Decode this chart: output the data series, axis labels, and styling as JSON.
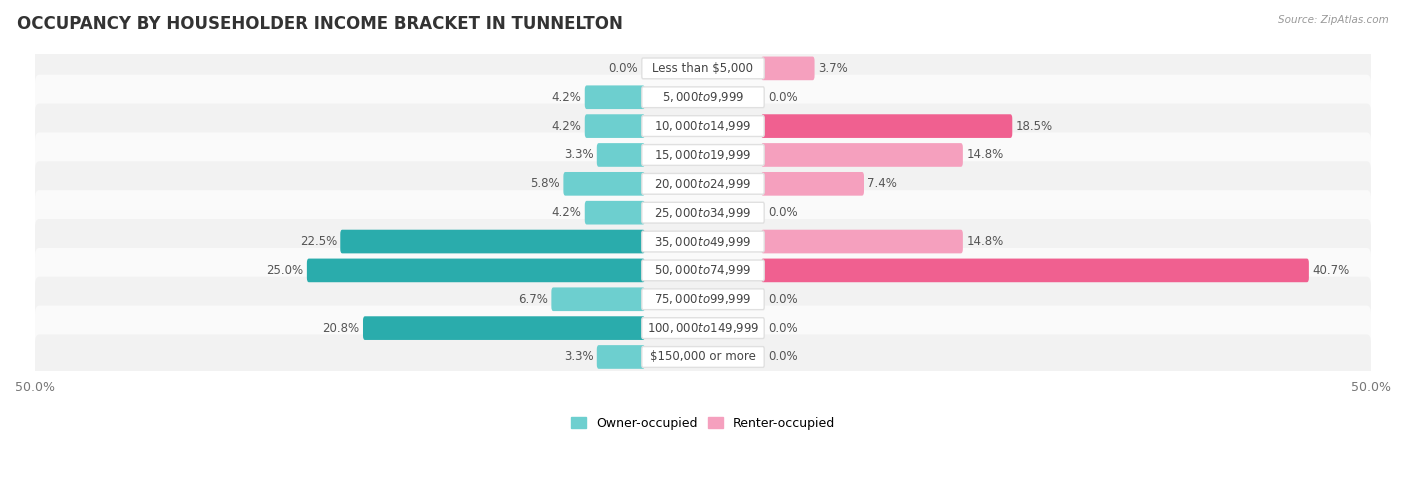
{
  "title": "OCCUPANCY BY HOUSEHOLDER INCOME BRACKET IN TUNNELTON",
  "source": "Source: ZipAtlas.com",
  "categories": [
    "Less than $5,000",
    "$5,000 to $9,999",
    "$10,000 to $14,999",
    "$15,000 to $19,999",
    "$20,000 to $24,999",
    "$25,000 to $34,999",
    "$35,000 to $49,999",
    "$50,000 to $74,999",
    "$75,000 to $99,999",
    "$100,000 to $149,999",
    "$150,000 or more"
  ],
  "owner_values": [
    0.0,
    4.2,
    4.2,
    3.3,
    5.8,
    4.2,
    22.5,
    25.0,
    6.7,
    20.8,
    3.3
  ],
  "renter_values": [
    3.7,
    0.0,
    18.5,
    14.8,
    7.4,
    0.0,
    14.8,
    40.7,
    0.0,
    0.0,
    0.0
  ],
  "owner_color_light": "#6dcfcf",
  "owner_color_dark": "#2aacac",
  "renter_color_light": "#f5a0be",
  "renter_color_dark": "#f06090",
  "owner_dark_thresh": 15.0,
  "renter_dark_thresh": 15.0,
  "bar_height": 0.52,
  "xlim": 50.0,
  "row_bg_even": "#f2f2f2",
  "row_bg_odd": "#fafafa",
  "title_fontsize": 12,
  "cat_fontsize": 8.5,
  "val_fontsize": 8.5,
  "tick_fontsize": 9,
  "legend_fontsize": 9
}
